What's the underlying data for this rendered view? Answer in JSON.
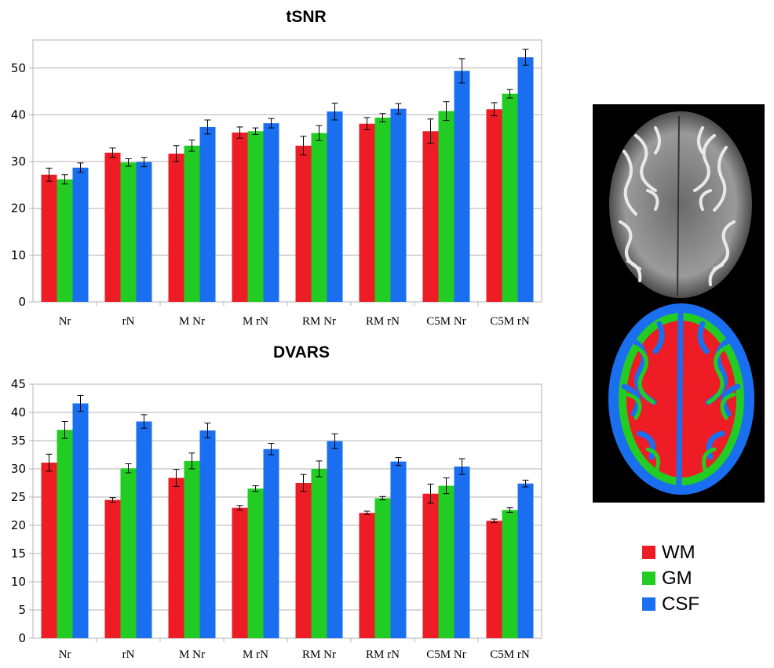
{
  "chart_data": [
    {
      "type": "bar",
      "title": "tSNR",
      "categories": [
        "Nr",
        "rN",
        "M Nr",
        "M rN",
        "RM Nr",
        "RM rN",
        "C5M Nr",
        "C5M rN"
      ],
      "ylim": [
        0,
        56
      ],
      "yticks": [
        0,
        10,
        20,
        30,
        40,
        50
      ],
      "grid": true,
      "series": [
        {
          "name": "WM",
          "color": "#ee1c25",
          "values": [
            27.2,
            31.9,
            31.7,
            36.2,
            33.4,
            38.1,
            36.5,
            41.2
          ],
          "errors": [
            1.4,
            1.0,
            1.7,
            1.2,
            2.0,
            1.3,
            2.6,
            1.4
          ]
        },
        {
          "name": "GM",
          "color": "#22cc22",
          "values": [
            26.2,
            29.8,
            33.4,
            36.5,
            36.1,
            39.4,
            40.8,
            44.5
          ],
          "errors": [
            1.0,
            0.8,
            1.2,
            0.7,
            1.6,
            0.9,
            2.0,
            0.9
          ]
        },
        {
          "name": "CSF",
          "color": "#1a6ff0",
          "values": [
            28.7,
            29.9,
            37.4,
            38.2,
            40.7,
            41.3,
            49.4,
            52.3
          ],
          "errors": [
            1.0,
            1.0,
            1.5,
            1.0,
            1.8,
            1.1,
            2.6,
            1.7
          ]
        }
      ]
    },
    {
      "type": "bar",
      "title": "DVARS",
      "categories": [
        "Nr",
        "rN",
        "M Nr",
        "M rN",
        "RM Nr",
        "RM rN",
        "C5M Nr",
        "C5M rN"
      ],
      "ylim": [
        0,
        45
      ],
      "yticks": [
        0,
        5,
        10,
        15,
        20,
        25,
        30,
        35,
        40,
        45
      ],
      "grid": true,
      "series": [
        {
          "name": "WM",
          "color": "#ee1c25",
          "values": [
            31.1,
            24.5,
            28.4,
            23.1,
            27.5,
            22.2,
            25.6,
            20.8
          ],
          "errors": [
            1.5,
            0.4,
            1.5,
            0.4,
            1.5,
            0.3,
            1.7,
            0.3
          ]
        },
        {
          "name": "GM",
          "color": "#22cc22",
          "values": [
            36.9,
            30.1,
            31.4,
            26.5,
            30.0,
            24.8,
            27.0,
            22.7
          ],
          "errors": [
            1.5,
            0.8,
            1.4,
            0.5,
            1.4,
            0.3,
            1.4,
            0.4
          ]
        },
        {
          "name": "CSF",
          "color": "#1a6ff0",
          "values": [
            41.6,
            38.4,
            36.8,
            33.5,
            34.9,
            31.3,
            30.4,
            27.4
          ],
          "errors": [
            1.4,
            1.2,
            1.3,
            1.0,
            1.3,
            0.7,
            1.4,
            0.6
          ]
        }
      ]
    }
  ],
  "legend": {
    "items": [
      {
        "label": "WM",
        "color": "#ee1c25"
      },
      {
        "label": "GM",
        "color": "#22cc22"
      },
      {
        "label": "CSF",
        "color": "#1a6ff0"
      }
    ]
  },
  "brain_image": {
    "segmentation_colors": [
      "#ee1c25",
      "#22cc22",
      "#1a6ff0"
    ]
  }
}
